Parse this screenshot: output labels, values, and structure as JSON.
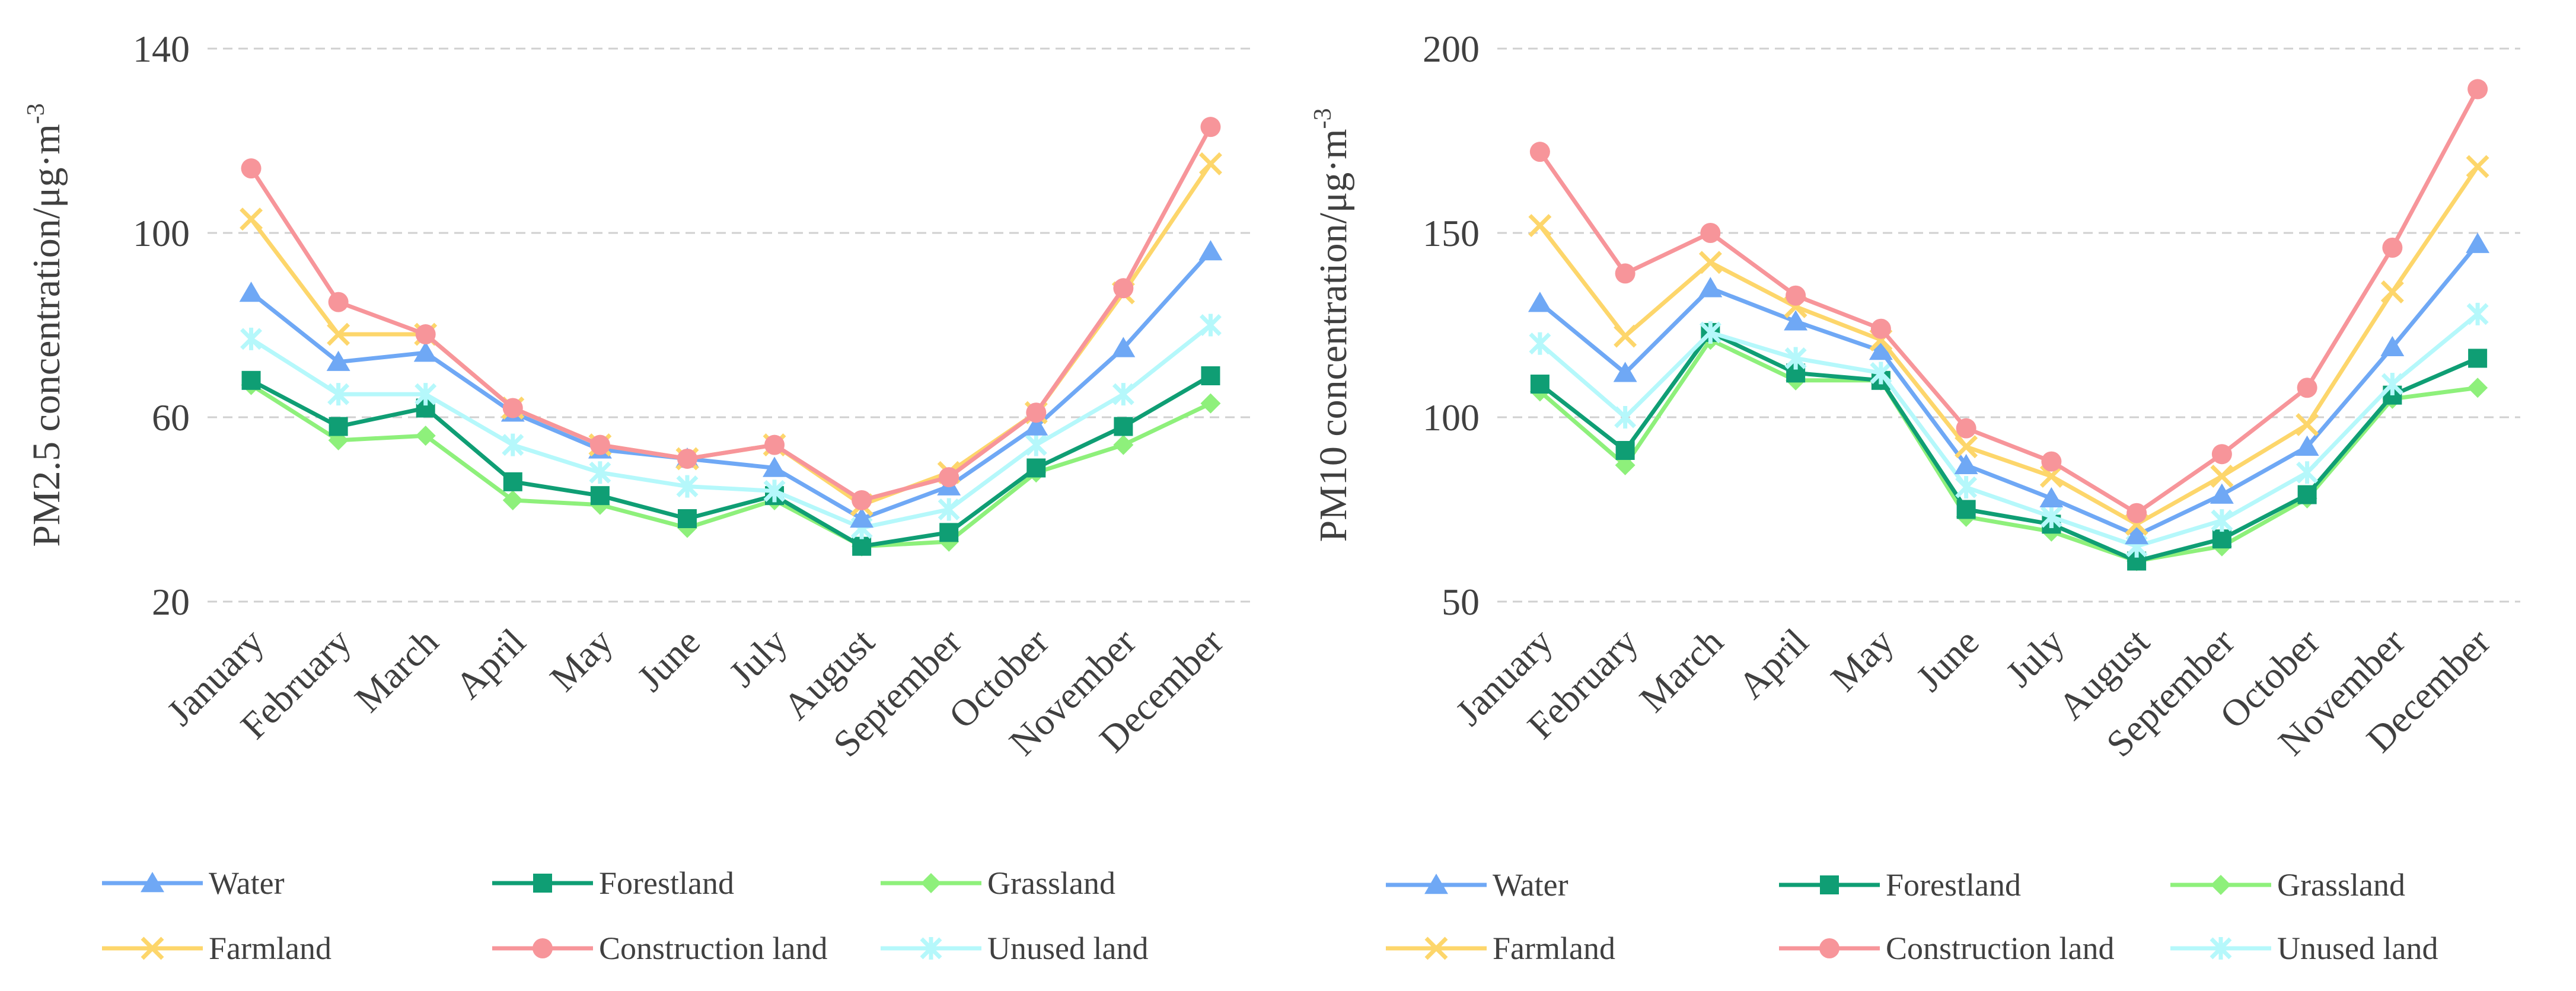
{
  "series_styles": [
    {
      "name": "Water",
      "color": "#6fa8f5",
      "marker": "triangle"
    },
    {
      "name": "Forestland",
      "color": "#0f9e74",
      "marker": "square"
    },
    {
      "name": "Grassland",
      "color": "#8ef07b",
      "marker": "diamond"
    },
    {
      "name": "Farmland",
      "color": "#fdd66b",
      "marker": "x"
    },
    {
      "name": "Construction land",
      "color": "#f7959a",
      "marker": "circle"
    },
    {
      "name": "Unused land",
      "color": "#b5f8fb",
      "marker": "asterisk"
    }
  ],
  "chart_data": [
    {
      "type": "line",
      "ylabel": "PM2.5 concentration/μg·m",
      "ylabel_sup": "-3",
      "ylim": [
        20,
        140
      ],
      "yticks": [
        20,
        60,
        100,
        140
      ],
      "grid": true,
      "legend_position": "bottom",
      "categories": [
        "January",
        "February",
        "March",
        "April",
        "May",
        "June",
        "July",
        "August",
        "September",
        "October",
        "November",
        "December"
      ],
      "series": [
        {
          "name": "Water",
          "values": [
            87,
            72,
            74,
            61,
            53,
            51,
            49,
            38,
            45,
            58,
            75,
            96
          ]
        },
        {
          "name": "Forestland",
          "values": [
            68,
            58,
            62,
            46,
            43,
            38,
            43,
            32,
            35,
            49,
            58,
            69
          ]
        },
        {
          "name": "Grassland",
          "values": [
            67,
            55,
            56,
            42,
            41,
            36,
            42,
            32,
            33,
            48,
            54,
            63
          ]
        },
        {
          "name": "Farmland",
          "values": [
            103,
            78,
            78,
            62,
            54,
            51,
            54,
            41,
            48,
            61,
            87,
            115
          ]
        },
        {
          "name": "Construction land",
          "values": [
            114,
            85,
            78,
            62,
            54,
            51,
            54,
            42,
            47,
            61,
            88,
            123
          ]
        },
        {
          "name": "Unused land",
          "values": [
            77,
            65,
            65,
            54,
            48,
            45,
            44,
            36,
            40,
            54,
            65,
            80
          ]
        }
      ]
    },
    {
      "type": "line",
      "ylabel": "PM10 concentration/μg·m",
      "ylabel_sup": "-3",
      "ylim": [
        50,
        200
      ],
      "yticks": [
        50,
        100,
        150,
        200
      ],
      "grid": true,
      "legend_position": "bottom",
      "categories": [
        "January",
        "February",
        "March",
        "April",
        "May",
        "June",
        "July",
        "August",
        "September",
        "October",
        "November",
        "December"
      ],
      "series": [
        {
          "name": "Water",
          "values": [
            131,
            112,
            135,
            126,
            118,
            87,
            78,
            68,
            79,
            92,
            119,
            147
          ]
        },
        {
          "name": "Forestland",
          "values": [
            109,
            91,
            123,
            112,
            110,
            75,
            71,
            61,
            67,
            79,
            106,
            116
          ]
        },
        {
          "name": "Grassland",
          "values": [
            107,
            87,
            121,
            110,
            110,
            73,
            69,
            61,
            65,
            78,
            105,
            108
          ]
        },
        {
          "name": "Farmland",
          "values": [
            152,
            122,
            142,
            130,
            121,
            92,
            84,
            71,
            84,
            98,
            134,
            168
          ]
        },
        {
          "name": "Construction land",
          "values": [
            172,
            139,
            150,
            133,
            124,
            97,
            88,
            74,
            90,
            108,
            146,
            189
          ]
        },
        {
          "name": "Unused land",
          "values": [
            120,
            100,
            123,
            116,
            112,
            81,
            73,
            65,
            72,
            85,
            109,
            128
          ]
        }
      ]
    }
  ]
}
